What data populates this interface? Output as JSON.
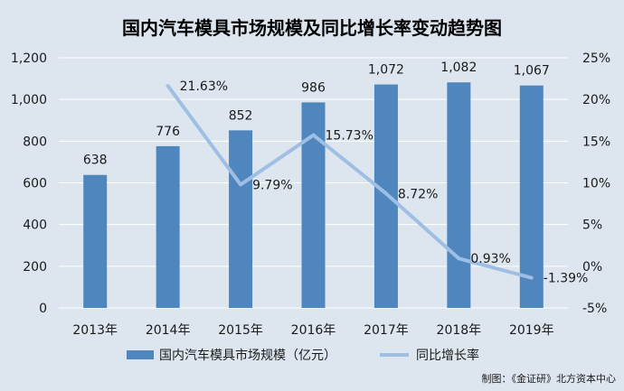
{
  "chart_data": {
    "type": "bar",
    "title": "国内汽车模具市场规模及同比增长率变动趋势图",
    "categories": [
      "2013年",
      "2014年",
      "2015年",
      "2016年",
      "2017年",
      "2018年",
      "2019年"
    ],
    "series": [
      {
        "name": "国内汽车模具市场规模（亿元）",
        "type": "bar",
        "axis": "left",
        "color": "#4f86be",
        "values": [
          638,
          776,
          852,
          986,
          1072,
          1082,
          1067
        ],
        "labels": [
          "638",
          "776",
          "852",
          "986",
          "1,072",
          "1,082",
          "1,067"
        ]
      },
      {
        "name": "同比增长率",
        "type": "line",
        "axis": "right",
        "color": "#9ebfe3",
        "values": [
          null,
          21.63,
          9.79,
          15.73,
          8.72,
          0.93,
          -1.39
        ],
        "labels": [
          "",
          "21.63%",
          "9.79%",
          "15.73%",
          "8.72%",
          "0.93%",
          "-1.39%"
        ]
      }
    ],
    "y_left": {
      "min": 0,
      "max": 1200,
      "ticks": [
        "0",
        "200",
        "400",
        "600",
        "800",
        "1,000",
        "1,200"
      ]
    },
    "y_right": {
      "min": -5,
      "max": 25,
      "ticks": [
        "-5%",
        "0%",
        "5%",
        "10%",
        "15%",
        "20%",
        "25%"
      ]
    },
    "grid": true,
    "legend": "bottom"
  },
  "source": "制图：《金证研》北方资本中心",
  "colors": {
    "background": "#dde6ef",
    "grid": "#ffffff"
  }
}
